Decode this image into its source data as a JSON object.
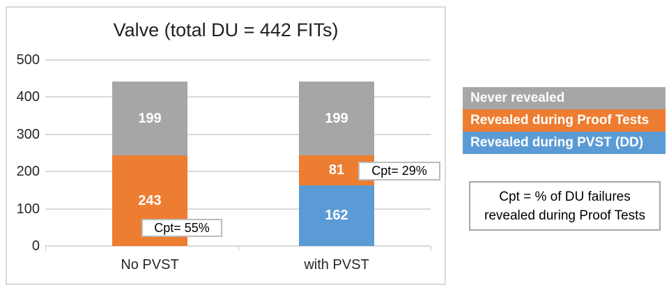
{
  "chart_data": {
    "type": "bar",
    "stacked": true,
    "title": "Valve (total DU = 442 FITs)",
    "categories": [
      "No PVST",
      "with PVST"
    ],
    "series": [
      {
        "name": "Revealed during PVST (DD)",
        "color": "#5B9BD5",
        "values": [
          0,
          162
        ]
      },
      {
        "name": "Revealed during Proof Tests",
        "color": "#ED7D31",
        "values": [
          243,
          81
        ]
      },
      {
        "name": "Never revealed",
        "color": "#A6A6A6",
        "values": [
          199,
          199
        ]
      }
    ],
    "ylim": [
      0,
      500
    ],
    "y_ticks": [
      0,
      100,
      200,
      300,
      400,
      500
    ],
    "grid": true,
    "legend_position": "right",
    "annotations": [
      {
        "text": "Cpt= 55%",
        "category": "No PVST"
      },
      {
        "text": "Cpt= 29%",
        "category": "with PVST"
      }
    ]
  },
  "legend": {
    "items": [
      {
        "label": "Never revealed",
        "color": "#A6A6A6"
      },
      {
        "label": "Revealed during Proof Tests",
        "color": "#ED7D31"
      },
      {
        "label": "Revealed during PVST (DD)",
        "color": "#5B9BD5"
      }
    ]
  },
  "note": {
    "lines": [
      "Cpt = % of DU failures",
      "revealed during Proof Tests"
    ]
  },
  "colors": {
    "gridline": "#D9D9D9",
    "chart_border": "#D9D9D9",
    "axis_text": "#262626"
  }
}
